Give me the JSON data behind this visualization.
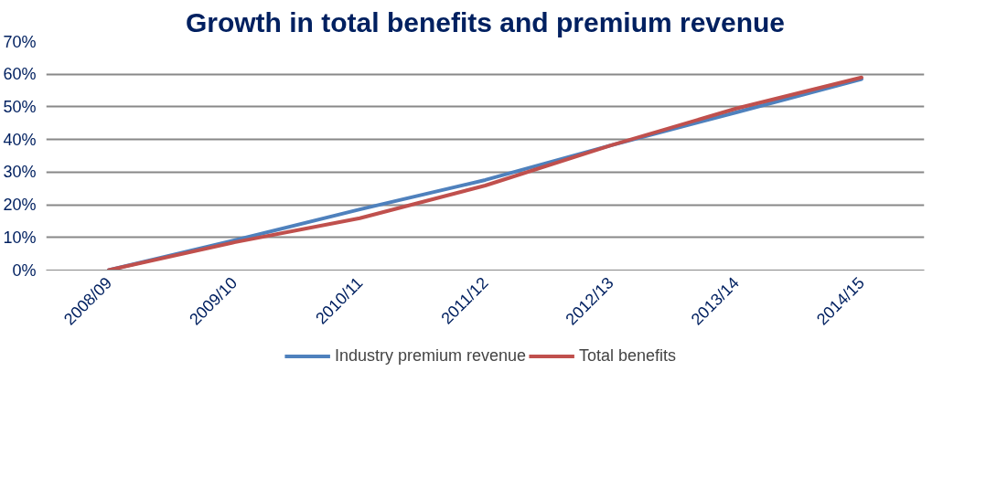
{
  "chart_data": {
    "type": "line",
    "title": "Growth in total benefits and premium revenue",
    "categories": [
      "2008/09",
      "2009/10",
      "2010/11",
      "2011/12",
      "2012/13",
      "2013/14",
      "2014/15"
    ],
    "series": [
      {
        "name": "Industry premium revenue",
        "color": "#4f81bd",
        "values": [
          0,
          9.1,
          18.6,
          27.6,
          38.2,
          48.3,
          58.5
        ]
      },
      {
        "name": "Total benefits",
        "color": "#c0504d",
        "values": [
          0,
          8.5,
          15.9,
          25.9,
          38.2,
          49.5,
          59
        ]
      }
    ],
    "ylim": [
      0,
      70
    ],
    "yticks": [
      {
        "value": 0,
        "label": "0%"
      },
      {
        "value": 10,
        "label": "10%"
      },
      {
        "value": 20,
        "label": "20%"
      },
      {
        "value": 30,
        "label": "30%"
      },
      {
        "value": 40,
        "label": "40%"
      },
      {
        "value": 50,
        "label": "50%"
      },
      {
        "value": 60,
        "label": "60%"
      },
      {
        "value": 70,
        "label": "70%"
      }
    ],
    "grid": "y",
    "legend": "bottom",
    "marker": "none",
    "line_style": "solid"
  }
}
